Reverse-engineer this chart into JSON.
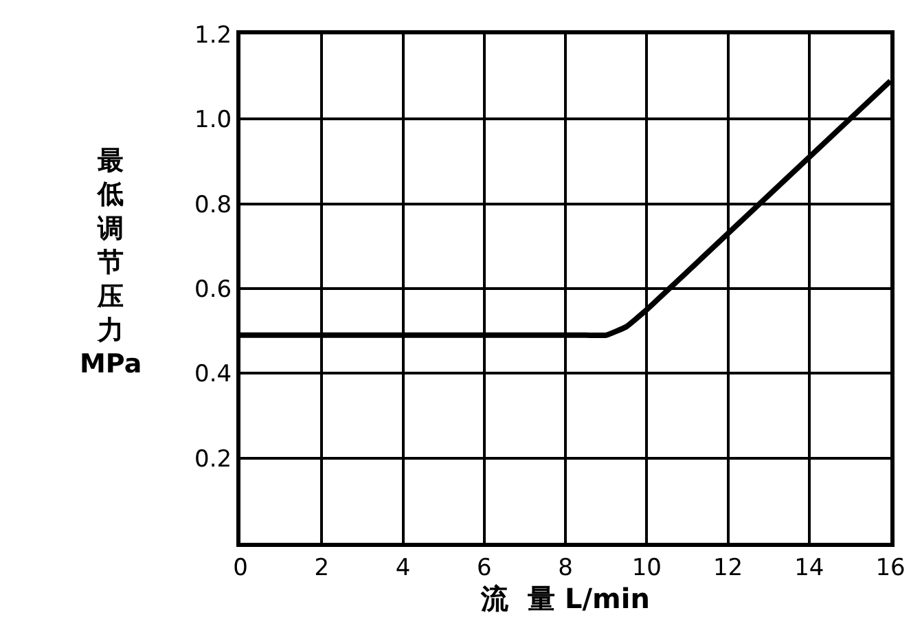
{
  "chart_data": {
    "type": "line",
    "xlabel": "流  量 L/min",
    "ylabel": "最低调节压力\nMPa",
    "x": [
      0,
      8.5,
      9,
      9.5,
      10,
      12,
      14,
      16
    ],
    "series": [
      {
        "color": "#000000",
        "values": [
          0.49,
          0.49,
          0.49,
          0.51,
          0.55,
          0.73,
          0.91,
          1.09
        ]
      }
    ],
    "xlim": [
      0,
      16
    ],
    "ylim": [
      0,
      1.2
    ],
    "xticks": [
      0,
      2,
      4,
      6,
      8,
      10,
      12,
      14,
      16
    ],
    "yticks": [
      {
        "value": 0,
        "label": null
      },
      {
        "value": 0.2,
        "label": "0.2"
      },
      {
        "value": 0.4,
        "label": "0.4"
      },
      {
        "value": 0.6,
        "label": "0.6"
      },
      {
        "value": 0.8,
        "label": "0.8"
      },
      {
        "value": 1,
        "label": "1.0"
      },
      {
        "value": 1.2,
        "label": "1.2"
      }
    ],
    "grid": true,
    "legend": false,
    "marker": "none",
    "line_style": "solid"
  }
}
